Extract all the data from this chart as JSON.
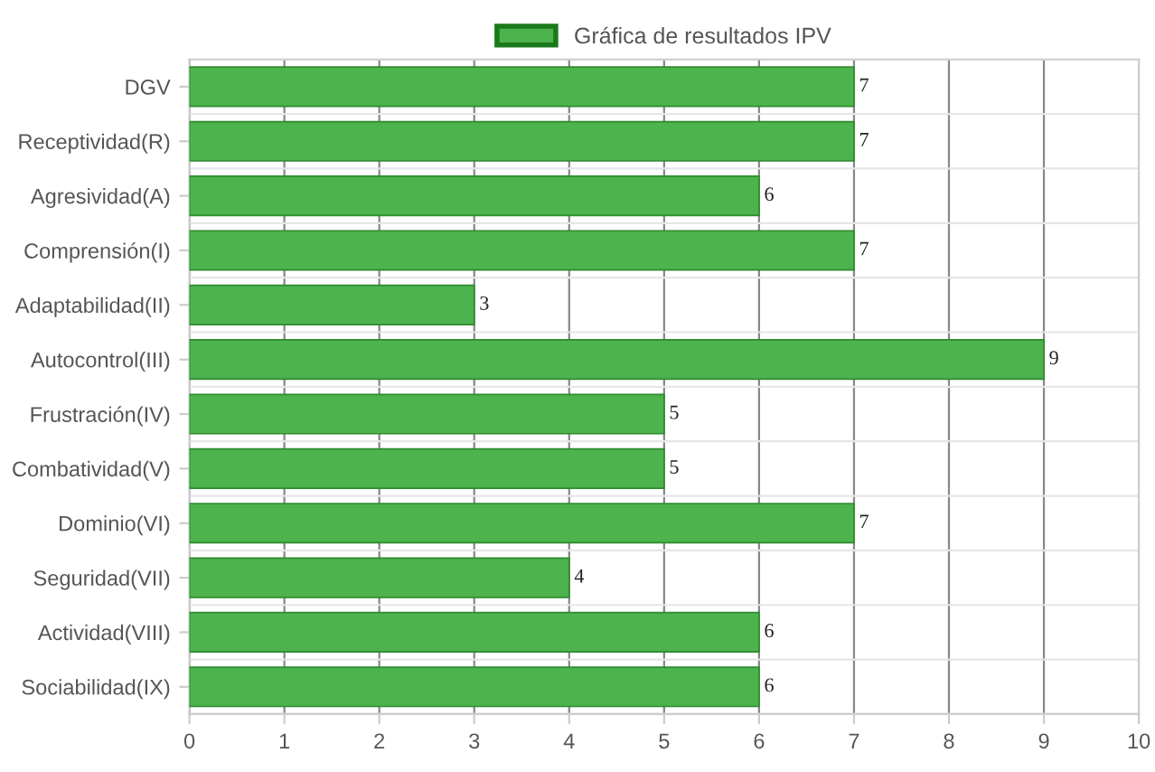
{
  "chart_data": {
    "type": "bar",
    "orientation": "horizontal",
    "categories": [
      "DGV",
      "Receptividad(R)",
      "Agresividad(A)",
      "Comprensión(I)",
      "Adaptabilidad(II)",
      "Autocontrol(III)",
      "Frustración(IV)",
      "Combatividad(V)",
      "Dominio(VI)",
      "Seguridad(VII)",
      "Actividad(VIII)",
      "Sociabilidad(IX)"
    ],
    "series": [
      {
        "name": "Gráfica de resultados IPV",
        "color": "#4db34d",
        "values": [
          7,
          7,
          6,
          7,
          3,
          9,
          5,
          5,
          7,
          4,
          6,
          6
        ]
      }
    ],
    "xlim": [
      0,
      10
    ],
    "xticks": [
      0,
      1,
      2,
      3,
      4,
      5,
      6,
      7,
      8,
      9,
      10
    ],
    "grid": true,
    "legend": "top",
    "data_labels": true
  }
}
